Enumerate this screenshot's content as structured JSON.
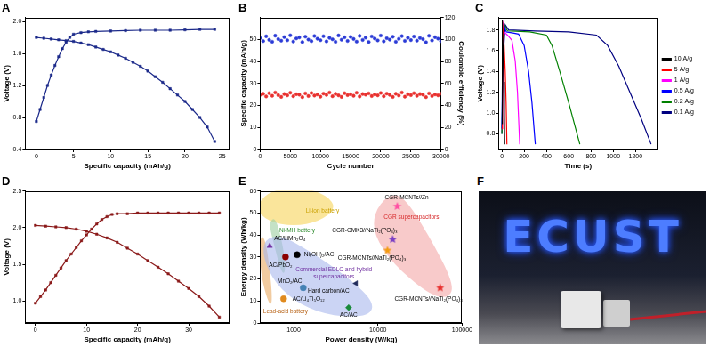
{
  "chart_data": [
    {
      "type": "line",
      "title": "A",
      "x_label": "Specific capacity (mAh/g)",
      "y_label": "Voltage (V)",
      "xlim": [
        -1.5,
        26
      ],
      "xticks": [
        0,
        5,
        10,
        15,
        20,
        25
      ],
      "ylim": [
        0.4,
        2.05
      ],
      "yticks": [
        0.4,
        0.8,
        1.2,
        1.6,
        {
          "value": 2,
          "label": "2.0"
        }
      ],
      "grid": false,
      "series": [
        {
          "color": "#1c2a8a",
          "marker": "square",
          "x": [
            0,
            0.5,
            1,
            1.5,
            2,
            2.5,
            3,
            3.5,
            4,
            4.5,
            5,
            6,
            7,
            8,
            10,
            12,
            14,
            16,
            18,
            20,
            22,
            24
          ],
          "values": [
            0.75,
            0.9,
            1.05,
            1.2,
            1.33,
            1.45,
            1.56,
            1.66,
            1.74,
            1.8,
            1.84,
            1.86,
            1.87,
            1.875,
            1.88,
            1.885,
            1.89,
            1.89,
            1.89,
            1.895,
            1.9,
            1.9
          ]
        },
        {
          "color": "#1c2a8a",
          "marker": "square",
          "x": [
            0,
            1,
            2,
            3,
            4,
            5,
            6,
            7,
            8,
            9,
            10,
            11,
            12,
            13,
            14,
            15,
            16,
            17,
            18,
            19,
            20,
            21,
            22,
            23,
            24
          ],
          "values": [
            1.8,
            1.79,
            1.78,
            1.77,
            1.76,
            1.75,
            1.73,
            1.71,
            1.68,
            1.65,
            1.62,
            1.58,
            1.54,
            1.49,
            1.44,
            1.38,
            1.31,
            1.24,
            1.16,
            1.08,
            1.0,
            0.9,
            0.8,
            0.68,
            0.5
          ]
        }
      ]
    },
    {
      "type": "scatter",
      "title": "B",
      "x_label": "Cycle number",
      "y_label": "Specific capacity (mAh/g)",
      "y2_label": "Coulombic efficiency (%)",
      "xlim": [
        0,
        30000
      ],
      "xticks": [
        0,
        5000,
        10000,
        15000,
        20000,
        25000,
        30000
      ],
      "ylim": [
        0,
        60
      ],
      "yticks": [
        0,
        10,
        20,
        30,
        40,
        50
      ],
      "y2lim": [
        0,
        120
      ],
      "y2ticks": [
        0,
        20,
        40,
        60,
        80,
        100,
        120
      ],
      "grid": false,
      "x": [
        0,
        500,
        1000,
        1500,
        2000,
        2500,
        3000,
        3500,
        4000,
        4500,
        5000,
        5500,
        6000,
        6500,
        7000,
        7500,
        8000,
        8500,
        9000,
        9500,
        10000,
        10500,
        11000,
        11500,
        12000,
        12500,
        13000,
        13500,
        14000,
        14500,
        15000,
        15500,
        16000,
        16500,
        17000,
        17500,
        18000,
        18500,
        19000,
        19500,
        20000,
        20500,
        21000,
        21500,
        22000,
        22500,
        23000,
        23500,
        24000,
        24500,
        25000,
        25500,
        26000,
        26500,
        27000,
        27500,
        28000,
        28500,
        29000,
        29500,
        30000
      ],
      "series": [
        {
          "color": "#e8312f",
          "marker": "circle",
          "values": [
            24.8,
            25.3,
            24.1,
            25.6,
            24.4,
            25.9,
            24.7,
            23.9,
            25.2,
            24.6,
            25.8,
            24.2,
            25.1,
            24.9,
            23.8,
            25.5,
            24.3,
            25.7,
            24.5,
            25.0,
            24.0,
            25.4,
            24.8,
            25.9,
            24.2,
            25.3,
            24.6,
            23.9,
            25.6,
            24.7,
            25.1,
            24.4,
            25.8,
            24.1,
            25.2,
            24.9,
            25.5,
            24.3,
            25.0,
            24.6,
            25.7,
            24.2,
            25.4,
            24.8,
            23.9,
            25.3,
            24.5,
            25.9,
            24.0,
            25.1,
            24.7,
            25.6,
            24.4,
            25.2,
            24.9,
            23.8,
            25.5,
            24.3,
            25.0,
            24.6,
            25.4
          ]
        },
        {
          "color": "#2b3bd6",
          "marker": "circle",
          "axis": "y2",
          "values": [
            101.2,
            98.5,
            102.8,
            99.6,
            97.9,
            103.4,
            100.3,
            98.8,
            102.1,
            99.2,
            103.7,
            98.1,
            100.9,
            101.8,
            97.6,
            102.5,
            99.9,
            98.4,
            103.1,
            100.6,
            99.3,
            102.9,
            98.2,
            101.4,
            100.1,
            97.8,
            103.6,
            99.7,
            101.9,
            98.6,
            102.3,
            100.4,
            98.0,
            103.2,
            99.5,
            101.6,
            97.7,
            102.7,
            100.8,
            99.1,
            103.5,
            98.3,
            101.1,
            99.8,
            102.4,
            97.9,
            100.5,
            103.0,
            98.7,
            101.5,
            99.4,
            102.6,
            98.9,
            101.3,
            100.2,
            97.5,
            103.3,
            99.0,
            102.0,
            100.7,
            98.4
          ]
        }
      ]
    },
    {
      "type": "line",
      "title": "C",
      "x_label": "Time (s)",
      "y_label": "Voltage (V)",
      "xlim": [
        -30,
        1400
      ],
      "xticks": [
        0,
        200,
        400,
        600,
        800,
        1000,
        1200
      ],
      "ylim": [
        0.65,
        1.92
      ],
      "yticks": [
        0.8,
        {
          "value": 1,
          "label": "1.0"
        },
        1.2,
        1.4,
        1.6,
        1.8
      ],
      "grid": false,
      "legend": "right",
      "series": [
        {
          "name": "10 A/g",
          "color": "#000000",
          "marker": "none",
          "x": [
            0,
            2,
            4,
            6,
            10,
            14,
            18,
            22,
            25
          ],
          "values": [
            0.9,
            1.8,
            1.9,
            1.8,
            1.65,
            1.5,
            1.3,
            1.0,
            0.7
          ]
        },
        {
          "name": "5 A/g",
          "color": "#ff0000",
          "marker": "none",
          "x": [
            0,
            3,
            6,
            10,
            20,
            30,
            38,
            45
          ],
          "values": [
            0.85,
            1.8,
            1.88,
            1.8,
            1.65,
            1.4,
            1.1,
            0.7
          ]
        },
        {
          "name": "1 A/g",
          "color": "#ff00ff",
          "marker": "none",
          "x": [
            0,
            5,
            10,
            20,
            50,
            90,
            120,
            140,
            160
          ],
          "values": [
            0.85,
            1.75,
            1.85,
            1.78,
            1.75,
            1.7,
            1.5,
            1.2,
            0.7
          ]
        },
        {
          "name": "0.5 A/g",
          "color": "#0000ff",
          "marker": "none",
          "x": [
            0,
            8,
            15,
            40,
            100,
            150,
            200,
            240,
            270,
            300
          ],
          "values": [
            0.85,
            1.7,
            1.85,
            1.78,
            1.77,
            1.76,
            1.65,
            1.4,
            1.1,
            0.7
          ]
        },
        {
          "name": "0.2 A/g",
          "color": "#008000",
          "marker": "none",
          "x": [
            0,
            10,
            20,
            50,
            250,
            400,
            450,
            520,
            600,
            700
          ],
          "values": [
            0.8,
            1.6,
            1.85,
            1.79,
            1.78,
            1.75,
            1.65,
            1.4,
            1.1,
            0.7
          ]
        },
        {
          "name": "0.1 A/g",
          "color": "#000080",
          "marker": "none",
          "x": [
            0,
            15,
            30,
            60,
            300,
            600,
            850,
            950,
            1050,
            1150,
            1250,
            1340
          ],
          "values": [
            0.8,
            1.6,
            1.85,
            1.8,
            1.79,
            1.78,
            1.75,
            1.65,
            1.45,
            1.2,
            0.95,
            0.7
          ]
        }
      ]
    },
    {
      "type": "line",
      "title": "D",
      "x_label": "Specific capacity (mAh/g)",
      "y_label": "Voltage (V)",
      "xlim": [
        -2,
        38
      ],
      "xticks": [
        0,
        10,
        20,
        30
      ],
      "ylim": [
        0.7,
        2.5
      ],
      "yticks": [
        {
          "value": 1,
          "label": "1.0"
        },
        1.5,
        {
          "value": 2,
          "label": "2.0"
        },
        2.5
      ],
      "grid": false,
      "series": [
        {
          "color": "#8b1a1a",
          "marker": "square",
          "x": [
            0,
            1,
            2,
            3,
            4,
            5,
            6,
            7,
            8,
            9,
            10,
            11,
            12,
            13,
            14,
            15,
            16,
            18,
            20,
            22,
            24,
            26,
            28,
            30,
            32,
            34,
            36
          ],
          "values": [
            0.97,
            1.06,
            1.15,
            1.25,
            1.35,
            1.45,
            1.55,
            1.64,
            1.73,
            1.82,
            1.9,
            1.98,
            2.05,
            2.11,
            2.15,
            2.18,
            2.19,
            2.19,
            2.2,
            2.2,
            2.2,
            2.2,
            2.2,
            2.2,
            2.2,
            2.2,
            2.2
          ]
        },
        {
          "color": "#8b1a1a",
          "marker": "square",
          "x": [
            0,
            2,
            4,
            6,
            8,
            10,
            12,
            14,
            16,
            18,
            20,
            22,
            24,
            26,
            28,
            30,
            32,
            34,
            36
          ],
          "values": [
            2.03,
            2.02,
            2.01,
            2.0,
            1.98,
            1.95,
            1.91,
            1.86,
            1.8,
            1.72,
            1.64,
            1.55,
            1.46,
            1.37,
            1.27,
            1.17,
            1.06,
            0.93,
            0.78
          ]
        }
      ]
    },
    {
      "type": "scatter",
      "title": "E",
      "x_label": "Power density (W/kg)",
      "y_label": "Energy density (Wh/kg)",
      "log": "x",
      "xlim": [
        400,
        100000
      ],
      "xticks": [
        1000,
        10000,
        100000
      ],
      "ylim": [
        0,
        60
      ],
      "yticks": [
        0,
        10,
        20,
        30,
        40,
        50,
        60
      ],
      "grid": false,
      "regions": [
        {
          "color": "#f7d358",
          "x": [
            350,
            500,
            1000,
            2000,
            3200,
            2500,
            1200,
            500
          ],
          "y": [
            52,
            46,
            44,
            46,
            52,
            58,
            62,
            60
          ]
        },
        {
          "color": "#e8a860",
          "x": [
            400,
            460,
            520,
            560,
            520,
            450,
            400
          ],
          "y": [
            40,
            38,
            25,
            10,
            8,
            15,
            25
          ]
        },
        {
          "color": "#9ccfa0",
          "x": [
            520,
            600,
            700,
            800,
            780,
            700,
            600,
            530
          ],
          "y": [
            46,
            48,
            40,
            28,
            22,
            24,
            34,
            42
          ]
        },
        {
          "color": "#a8b8ec",
          "x": [
            450,
            700,
            1500,
            4000,
            9000,
            8000,
            3000,
            1200,
            600,
            430
          ],
          "y": [
            38,
            40,
            33,
            22,
            10,
            3,
            3,
            8,
            18,
            30
          ]
        },
        {
          "color": "#f4a7a7",
          "x": [
            9000,
            13000,
            20000,
            40000,
            80000,
            70000,
            40000,
            15000,
            9000
          ],
          "y": [
            50,
            58,
            58,
            40,
            18,
            11,
            13,
            27,
            40
          ]
        }
      ],
      "series": [
        {
          "color": "#7030a0",
          "marker": "triangle",
          "x": [
            520
          ],
          "values": [
            35
          ]
        },
        {
          "color": "#8b0000",
          "marker": "circle",
          "x": [
            800
          ],
          "values": [
            30
          ]
        },
        {
          "color": "#000000",
          "marker": "circle",
          "x": [
            1100
          ],
          "values": [
            31
          ]
        },
        {
          "color": "#e08a1e",
          "marker": "circle",
          "x": [
            760
          ],
          "values": [
            11
          ]
        },
        {
          "color": "#4682b4",
          "marker": "circle",
          "x": [
            1300
          ],
          "values": [
            16
          ]
        },
        {
          "color": "#1f2a5c",
          "marker": "triangle_left",
          "x": [
            5500
          ],
          "values": [
            18
          ]
        },
        {
          "color": "#1a8a3a",
          "marker": "diamond",
          "x": [
            4500
          ],
          "values": [
            7
          ]
        },
        {
          "color": "#ff4fa3",
          "marker": "star",
          "x": [
            17000
          ],
          "values": [
            53
          ]
        },
        {
          "color": "#7b3fc4",
          "marker": "star",
          "x": [
            15000
          ],
          "values": [
            38
          ]
        },
        {
          "color": "#f39c12",
          "marker": "star",
          "x": [
            13000
          ],
          "values": [
            33
          ]
        },
        {
          "color": "#e8312f",
          "marker": "star",
          "x": [
            55000
          ],
          "values": [
            16
          ]
        }
      ],
      "annotations": [
        {
          "text": "Li-ion battery",
          "x": 2200,
          "y": 51,
          "color": "#c9a000"
        },
        {
          "text": "Ni-MH battery",
          "x": 1100,
          "y": 42,
          "color": "#2e8b2e"
        },
        {
          "text": "Lead-acid battery",
          "x": 800,
          "y": 5,
          "color": "#b8651a"
        },
        {
          "text": "Commercial EDLC and hybrid",
          "x": 3000,
          "y": 24,
          "color": "#7030a0"
        },
        {
          "text": "supercapacitors",
          "x": 3000,
          "y": 21,
          "color": "#7030a0"
        },
        {
          "text": "CGR supercapacitors",
          "x": 25000,
          "y": 48,
          "color": "#d62728"
        },
        {
          "text": "AC/LiMn₂O₄",
          "x": 900,
          "y": 38.5,
          "color": "#000000"
        },
        {
          "text": "AC/PbO₂",
          "x": 700,
          "y": 26,
          "color": "#000000"
        },
        {
          "text": "Ni(OH)₂/AC",
          "x": 2000,
          "y": 31,
          "color": "#000000"
        },
        {
          "text": "AC/Li₄Ti₅O₁₂",
          "x": 1500,
          "y": 11,
          "color": "#000000"
        },
        {
          "text": "MnO₂/AC",
          "x": 900,
          "y": 19,
          "color": "#000000"
        },
        {
          "text": "Hard carbon/AC",
          "x": 2600,
          "y": 14.5,
          "color": "#000000"
        },
        {
          "text": "AC/AC",
          "x": 4500,
          "y": 3.5,
          "color": "#000000"
        },
        {
          "text": "CGR-MCNTs//Zn",
          "x": 22000,
          "y": 57,
          "color": "#000000"
        },
        {
          "text": "CGR-CMK3//NaTi₂(PO₄)₃",
          "x": 7000,
          "y": 42,
          "color": "#000000"
        },
        {
          "text": "CGR-MCNTs//NaTi₂(PO₄)₃",
          "x": 8500,
          "y": 29.5,
          "color": "#000000"
        },
        {
          "text": "CGR-MCNTs//NaTi₂(PO₄)₃",
          "x": 40000,
          "y": 11,
          "color": "#000000"
        }
      ]
    }
  ],
  "photo": {
    "label": "F",
    "text": "ECUST"
  }
}
